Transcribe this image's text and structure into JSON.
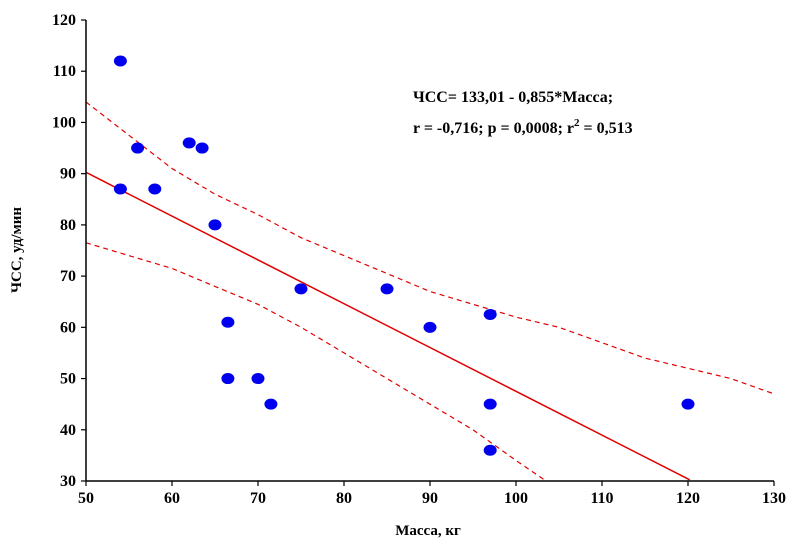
{
  "chart_data": {
    "type": "scatter",
    "xlabel": "Масса, кг",
    "ylabel": "ЧСС, уд/мин",
    "xlim": [
      50,
      130
    ],
    "ylim": [
      30,
      120
    ],
    "x_ticks": [
      "50",
      "60",
      "70",
      "80",
      "90",
      "100",
      "110",
      "120",
      "130"
    ],
    "y_ticks": [
      "30",
      "40",
      "50",
      "60",
      "70",
      "80",
      "90",
      "100",
      "110",
      "120"
    ],
    "grid": false,
    "points": [
      {
        "x": 54,
        "y": 112
      },
      {
        "x": 54,
        "y": 87
      },
      {
        "x": 56,
        "y": 95
      },
      {
        "x": 58,
        "y": 87
      },
      {
        "x": 62,
        "y": 96
      },
      {
        "x": 63.5,
        "y": 95
      },
      {
        "x": 65,
        "y": 80
      },
      {
        "x": 66.5,
        "y": 61
      },
      {
        "x": 66.5,
        "y": 50
      },
      {
        "x": 70,
        "y": 50
      },
      {
        "x": 71.5,
        "y": 45
      },
      {
        "x": 75,
        "y": 67.5
      },
      {
        "x": 85,
        "y": 67.5
      },
      {
        "x": 90,
        "y": 60
      },
      {
        "x": 97,
        "y": 62.5
      },
      {
        "x": 97,
        "y": 45
      },
      {
        "x": 97,
        "y": 36
      },
      {
        "x": 120,
        "y": 45
      }
    ],
    "regression": {
      "intercept": 133.01,
      "slope": -0.855,
      "x_range": [
        50,
        120.2
      ]
    },
    "confidence_upper": [
      {
        "x": 50,
        "y": 104
      },
      {
        "x": 55,
        "y": 97.5
      },
      {
        "x": 60,
        "y": 91
      },
      {
        "x": 65,
        "y": 86
      },
      {
        "x": 70,
        "y": 82
      },
      {
        "x": 75,
        "y": 77.5
      },
      {
        "x": 80,
        "y": 74
      },
      {
        "x": 85,
        "y": 70.5
      },
      {
        "x": 90,
        "y": 67
      },
      {
        "x": 95,
        "y": 64.5
      },
      {
        "x": 100,
        "y": 62
      },
      {
        "x": 105,
        "y": 60
      },
      {
        "x": 110,
        "y": 57
      },
      {
        "x": 115,
        "y": 54
      },
      {
        "x": 120,
        "y": 52
      },
      {
        "x": 125,
        "y": 50
      },
      {
        "x": 130,
        "y": 47
      }
    ],
    "confidence_lower": [
      {
        "x": 50,
        "y": 76.5
      },
      {
        "x": 55,
        "y": 74
      },
      {
        "x": 60,
        "y": 71.5
      },
      {
        "x": 65,
        "y": 68
      },
      {
        "x": 70,
        "y": 64.5
      },
      {
        "x": 75,
        "y": 60
      },
      {
        "x": 80,
        "y": 55
      },
      {
        "x": 85,
        "y": 50
      },
      {
        "x": 90,
        "y": 45
      },
      {
        "x": 95,
        "y": 40
      },
      {
        "x": 100,
        "y": 34
      },
      {
        "x": 103.5,
        "y": 30
      }
    ],
    "annotation_line1": "ЧСС= 133,01 - 0,855*Масса;",
    "annotation_line2_prefix": "r = -0,716; p = 0,0008; r",
    "annotation_line2_sup": "2",
    "annotation_line2_suffix": " = 0,513",
    "colors": {
      "points": "#0000ee",
      "regression": "#e00000",
      "axes": "#000000"
    }
  }
}
